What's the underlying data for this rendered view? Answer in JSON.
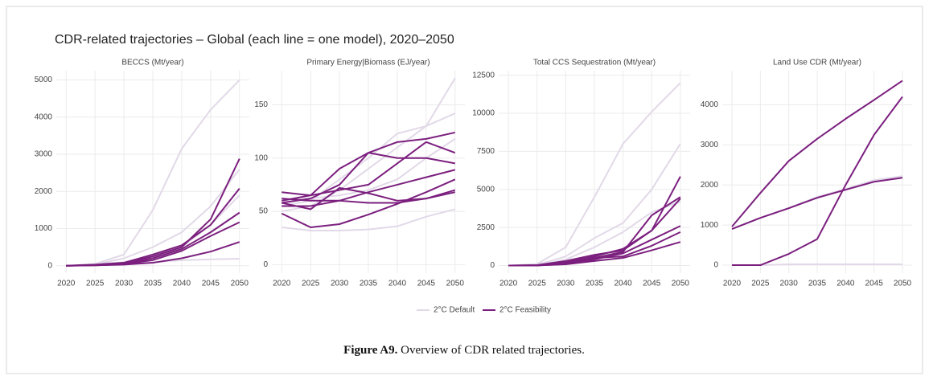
{
  "title": "CDR-related trajectories – Global (each line = one model), 2020–2050",
  "caption": {
    "label": "Figure A9.",
    "text": "Overview of CDR related trajectories."
  },
  "chart_data": [
    {
      "type": "line",
      "title": "BECCS (Mt/year)",
      "x": [
        2020,
        2025,
        2030,
        2035,
        2040,
        2045,
        2050
      ],
      "xlim": [
        2018.3,
        2051.7
      ],
      "xticks": [
        2020,
        2025,
        2030,
        2035,
        2040,
        2045,
        2050
      ],
      "ylim": [
        -200,
        5250
      ],
      "yticks": [
        0,
        1000,
        2000,
        3000,
        4000,
        5000
      ],
      "grid": true,
      "series": [
        {
          "name": "2°C Default",
          "color": "#e2d9e8",
          "values": [
            0,
            50,
            300,
            1500,
            3150,
            4200,
            5000
          ]
        },
        {
          "name": "2°C Default",
          "color": "#e2d9e8",
          "values": [
            0,
            30,
            200,
            500,
            900,
            1600,
            2600
          ]
        },
        {
          "name": "2°C Default",
          "color": "#e2d9e8",
          "values": [
            0,
            20,
            100,
            250,
            500,
            1100,
            1900
          ]
        },
        {
          "name": "2°C Default",
          "color": "#e2d9e8",
          "values": [
            0,
            10,
            50,
            100,
            150,
            170,
            190
          ]
        },
        {
          "name": "2°C Feasibility",
          "color": "#7b1f7e",
          "values": [
            0,
            20,
            60,
            250,
            500,
            1250,
            2880
          ]
        },
        {
          "name": "2°C Feasibility",
          "color": "#7b1f7e",
          "values": [
            0,
            30,
            80,
            300,
            550,
            1100,
            2080
          ]
        },
        {
          "name": "2°C Feasibility",
          "color": "#7b1f7e",
          "values": [
            0,
            20,
            50,
            200,
            450,
            900,
            1430
          ]
        },
        {
          "name": "2°C Feasibility",
          "color": "#7b1f7e",
          "values": [
            0,
            10,
            40,
            150,
            400,
            800,
            1170
          ]
        },
        {
          "name": "2°C Feasibility",
          "color": "#7b1f7e",
          "values": [
            0,
            10,
            30,
            80,
            200,
            380,
            640
          ]
        }
      ]
    },
    {
      "type": "line",
      "title": "Primary Energy|Biomass (EJ/year)",
      "x": [
        2020,
        2025,
        2030,
        2035,
        2040,
        2045,
        2050
      ],
      "xlim": [
        2018.3,
        2051.7
      ],
      "xticks": [
        2020,
        2025,
        2030,
        2035,
        2040,
        2045,
        2050
      ],
      "ylim": [
        -8,
        182
      ],
      "yticks": [
        0,
        50,
        100,
        150
      ],
      "grid": true,
      "series": [
        {
          "name": "2°C Default",
          "color": "#e2d9e8",
          "values": [
            35,
            32,
            32,
            33,
            36,
            45,
            52
          ]
        },
        {
          "name": "2°C Default",
          "color": "#e2d9e8",
          "values": [
            50,
            55,
            70,
            90,
            110,
            130,
            175
          ]
        },
        {
          "name": "2°C Default",
          "color": "#e2d9e8",
          "values": [
            55,
            60,
            80,
            100,
            123,
            130,
            142
          ]
        },
        {
          "name": "2°C Default",
          "color": "#e2d9e8",
          "values": [
            60,
            62,
            65,
            70,
            80,
            100,
            118
          ]
        },
        {
          "name": "2°C Feasibility",
          "color": "#7b1f7e",
          "values": [
            60,
            65,
            90,
            105,
            100,
            100,
            95
          ]
        },
        {
          "name": "2°C Feasibility",
          "color": "#7b1f7e",
          "values": [
            58,
            62,
            75,
            105,
            115,
            118,
            124
          ]
        },
        {
          "name": "2°C Feasibility",
          "color": "#7b1f7e",
          "values": [
            68,
            65,
            70,
            75,
            95,
            115,
            105
          ]
        },
        {
          "name": "2°C Feasibility",
          "color": "#7b1f7e",
          "values": [
            48,
            35,
            38,
            47,
            57,
            68,
            80
          ]
        },
        {
          "name": "2°C Feasibility",
          "color": "#7b1f7e",
          "values": [
            55,
            55,
            60,
            68,
            75,
            82,
            89
          ]
        },
        {
          "name": "2°C Feasibility",
          "color": "#7b1f7e",
          "values": [
            62,
            60,
            60,
            58,
            58,
            62,
            68
          ]
        },
        {
          "name": "2°C Feasibility",
          "color": "#7b1f7e",
          "values": [
            58,
            52,
            72,
            67,
            60,
            62,
            70
          ]
        }
      ]
    },
    {
      "type": "line",
      "title": "Total CCS Sequestration (Mt/year)",
      "x": [
        2020,
        2025,
        2030,
        2035,
        2040,
        2045,
        2050
      ],
      "xlim": [
        2018.3,
        2051.7
      ],
      "xticks": [
        2020,
        2025,
        2030,
        2035,
        2040,
        2045,
        2050
      ],
      "ylim": [
        -500,
        12800
      ],
      "yticks": [
        0,
        2500,
        5000,
        7500,
        10000,
        12500
      ],
      "grid": true,
      "series": [
        {
          "name": "2°C Default",
          "color": "#e2d9e8",
          "values": [
            0,
            100,
            1200,
            4500,
            8000,
            10100,
            12000
          ]
        },
        {
          "name": "2°C Default",
          "color": "#e2d9e8",
          "values": [
            0,
            50,
            600,
            1800,
            2800,
            5000,
            8000
          ]
        },
        {
          "name": "2°C Default",
          "color": "#e2d9e8",
          "values": [
            0,
            30,
            400,
            1200,
            2200,
            3500,
            4200
          ]
        },
        {
          "name": "2°C Feasibility",
          "color": "#7b1f7e",
          "values": [
            0,
            30,
            300,
            700,
            1000,
            2300,
            5850
          ]
        },
        {
          "name": "2°C Feasibility",
          "color": "#7b1f7e",
          "values": [
            0,
            20,
            200,
            600,
            1100,
            2300,
            4400
          ]
        },
        {
          "name": "2°C Feasibility",
          "color": "#7b1f7e",
          "values": [
            0,
            10,
            150,
            500,
            900,
            3300,
            4500
          ]
        },
        {
          "name": "2°C Feasibility",
          "color": "#7b1f7e",
          "values": [
            0,
            10,
            100,
            400,
            800,
            1700,
            2600
          ]
        },
        {
          "name": "2°C Feasibility",
          "color": "#7b1f7e",
          "values": [
            0,
            10,
            150,
            500,
            600,
            1300,
            2200
          ]
        },
        {
          "name": "2°C Feasibility",
          "color": "#7b1f7e",
          "values": [
            0,
            10,
            80,
            300,
            500,
            1000,
            1550
          ]
        }
      ]
    },
    {
      "type": "line",
      "title": "Land Use CDR (Mt/year)",
      "x": [
        2020,
        2025,
        2030,
        2035,
        2040,
        2045,
        2050
      ],
      "xlim": [
        2018.3,
        2051.7
      ],
      "xticks": [
        2020,
        2025,
        2030,
        2035,
        2040,
        2045,
        2050
      ],
      "ylim": [
        -200,
        4850
      ],
      "yticks": [
        0,
        1000,
        2000,
        3000,
        4000
      ],
      "grid": true,
      "series": [
        {
          "name": "2°C Default",
          "color": "#e2d9e8",
          "values": [
            900,
            1180,
            1430,
            1700,
            1900,
            2120,
            2220
          ]
        },
        {
          "name": "2°C Default",
          "color": "#e2d9e8",
          "values": [
            0,
            0,
            20,
            20,
            20,
            20,
            20
          ]
        },
        {
          "name": "2°C Feasibility",
          "color": "#7b1f7e",
          "values": [
            960,
            1800,
            2600,
            3150,
            3650,
            4120,
            4600
          ]
        },
        {
          "name": "2°C Feasibility",
          "color": "#7b1f7e",
          "values": [
            0,
            0,
            280,
            650,
            2000,
            3250,
            4200
          ]
        },
        {
          "name": "2°C Feasibility",
          "color": "#7b1f7e",
          "values": [
            900,
            1180,
            1420,
            1680,
            1880,
            2080,
            2180
          ]
        }
      ]
    }
  ]
}
